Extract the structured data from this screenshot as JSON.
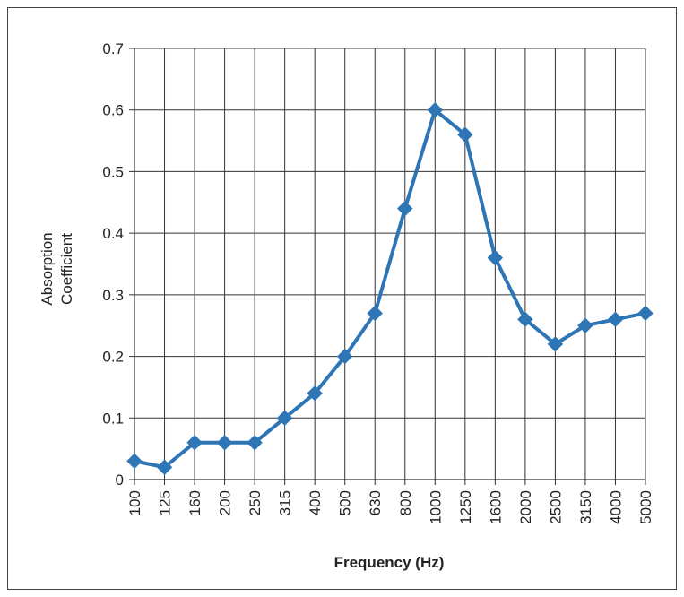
{
  "chart_data": {
    "type": "line",
    "categories": [
      "100",
      "125",
      "160",
      "200",
      "250",
      "315",
      "400",
      "500",
      "630",
      "800",
      "1000",
      "1250",
      "1600",
      "2000",
      "2500",
      "3150",
      "4000",
      "5000"
    ],
    "values": [
      0.03,
      0.02,
      0.06,
      0.06,
      0.06,
      0.1,
      0.14,
      0.2,
      0.27,
      0.44,
      0.6,
      0.56,
      0.36,
      0.26,
      0.22,
      0.25,
      0.26,
      0.27
    ],
    "title": "",
    "xlabel": "Frequency (Hz)",
    "ylabel_lines": [
      "Absorption",
      "Coefficient"
    ],
    "ylim": [
      0,
      0.7
    ],
    "yticks": [
      "0",
      "0.1",
      "0.2",
      "0.3",
      "0.4",
      "0.5",
      "0.6",
      "0.7"
    ],
    "grid": true,
    "legend": "none",
    "series_color": "#2e75b6",
    "marker": "diamond"
  }
}
